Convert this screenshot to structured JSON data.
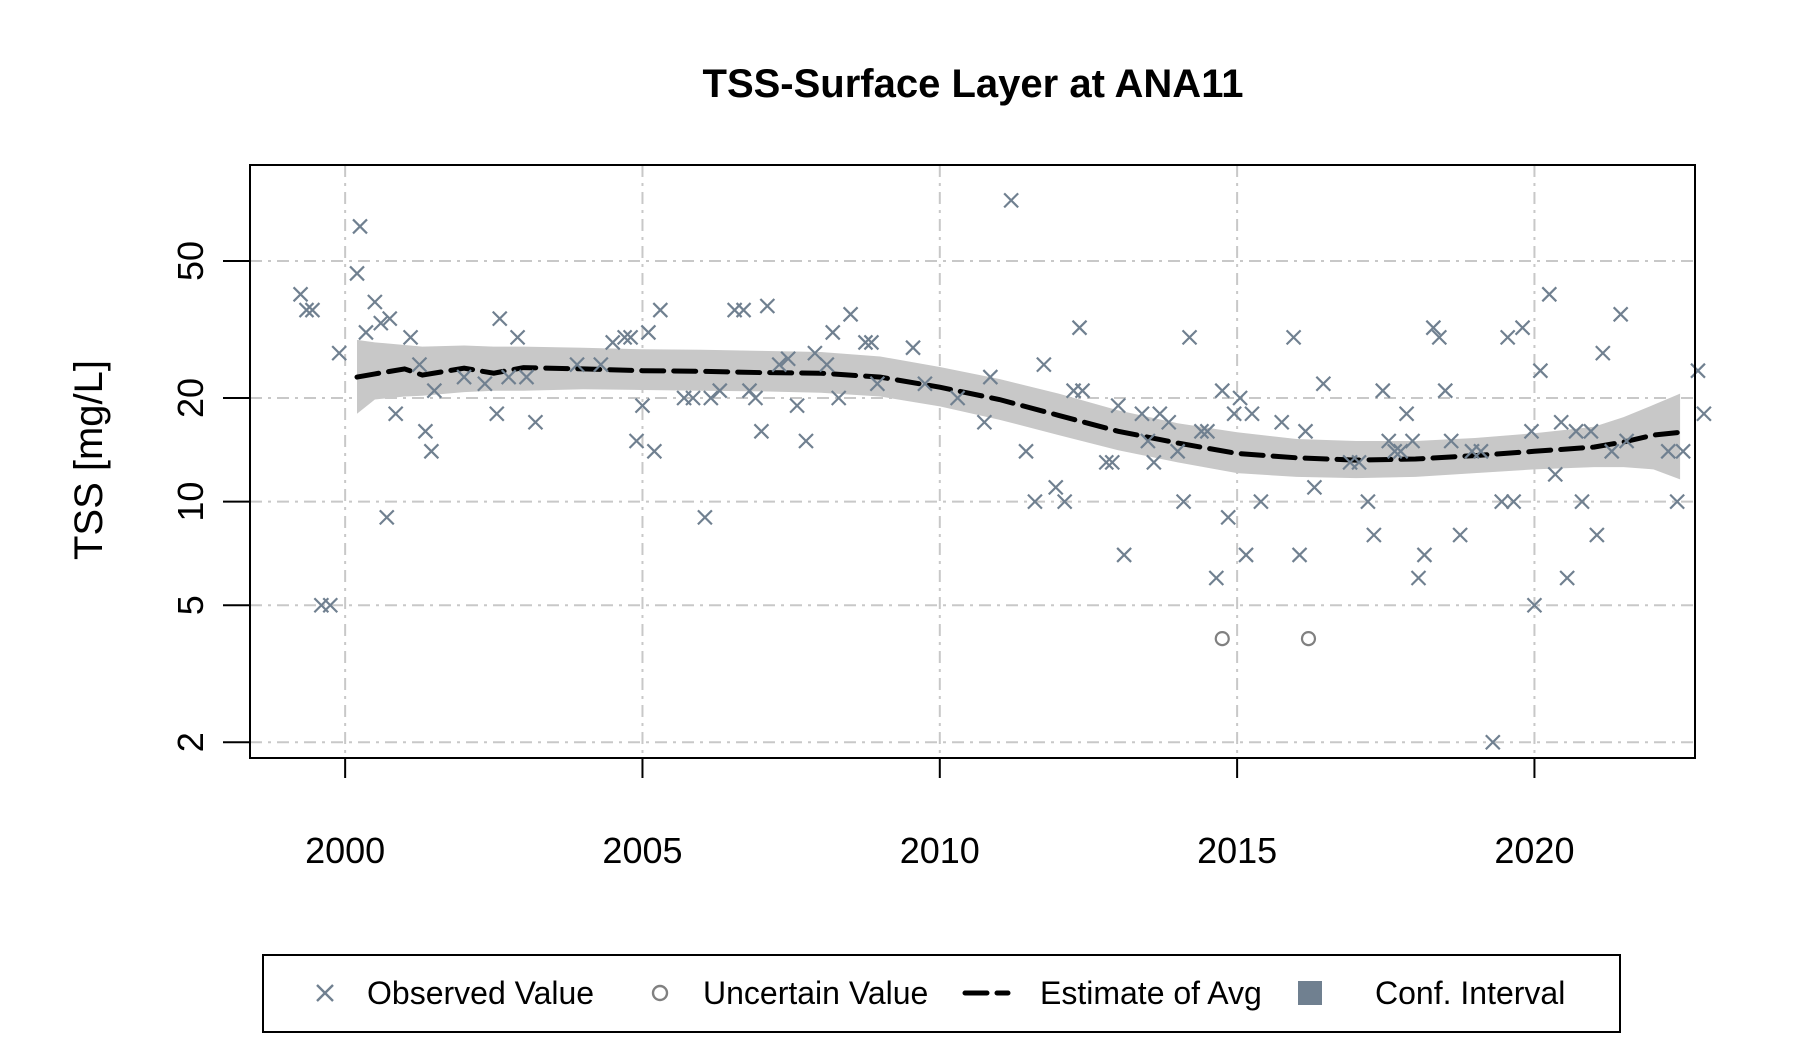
{
  "chart_data": {
    "type": "scatter",
    "title": "TSS-Surface Layer at ANA11",
    "xlabel": "",
    "ylabel": "TSS [mg/L]",
    "yscale": "log",
    "xlim": [
      1998.4,
      2022.7
    ],
    "ylim": [
      1.8,
      95
    ],
    "xticks": [
      2000,
      2005,
      2010,
      2015,
      2020
    ],
    "yticks": [
      2,
      5,
      10,
      20,
      50
    ],
    "grid": true,
    "legend_position": "bottom",
    "colors": {
      "observed": "#708090",
      "uncertain": "#808080",
      "estimate": "#000000",
      "conf_interval_fill": "#c8c8c8",
      "legend_ci_swatch": "#708090"
    },
    "legend": [
      {
        "label": "Observed Value",
        "marker": "x"
      },
      {
        "label": "Uncertain Value",
        "marker": "circle"
      },
      {
        "label": "Estimate of Avg",
        "marker": "dashed-line"
      },
      {
        "label": "Conf. Interval",
        "marker": "square"
      }
    ],
    "series": [
      {
        "name": "Observed Value",
        "marker": "x",
        "points": [
          [
            1999.25,
            40
          ],
          [
            1999.35,
            36
          ],
          [
            1999.45,
            36
          ],
          [
            1999.6,
            5
          ],
          [
            1999.75,
            5
          ],
          [
            1999.9,
            27
          ],
          [
            2000.2,
            46
          ],
          [
            2000.25,
            63
          ],
          [
            2000.35,
            31
          ],
          [
            2000.5,
            38
          ],
          [
            2000.6,
            33
          ],
          [
            2000.7,
            9
          ],
          [
            2000.75,
            34
          ],
          [
            2000.85,
            18
          ],
          [
            2001.1,
            30
          ],
          [
            2001.25,
            25
          ],
          [
            2001.35,
            16
          ],
          [
            2001.45,
            14
          ],
          [
            2001.5,
            21
          ],
          [
            2002.0,
            23
          ],
          [
            2002.35,
            22
          ],
          [
            2002.55,
            18
          ],
          [
            2002.6,
            34
          ],
          [
            2002.75,
            23
          ],
          [
            2002.9,
            30
          ],
          [
            2003.05,
            23
          ],
          [
            2003.2,
            17
          ],
          [
            2003.9,
            25
          ],
          [
            2004.3,
            25
          ],
          [
            2004.5,
            29
          ],
          [
            2004.7,
            30
          ],
          [
            2004.8,
            30
          ],
          [
            2004.9,
            15
          ],
          [
            2005.0,
            19
          ],
          [
            2005.1,
            31
          ],
          [
            2005.2,
            14
          ],
          [
            2005.3,
            36
          ],
          [
            2005.7,
            20
          ],
          [
            2005.85,
            20
          ],
          [
            2006.05,
            9
          ],
          [
            2006.15,
            20
          ],
          [
            2006.3,
            21
          ],
          [
            2006.55,
            36
          ],
          [
            2006.7,
            36
          ],
          [
            2006.8,
            21
          ],
          [
            2006.9,
            20
          ],
          [
            2007.0,
            16
          ],
          [
            2007.1,
            37
          ],
          [
            2007.3,
            25
          ],
          [
            2007.45,
            26
          ],
          [
            2007.6,
            19
          ],
          [
            2007.75,
            15
          ],
          [
            2007.9,
            27
          ],
          [
            2008.1,
            25
          ],
          [
            2008.2,
            31
          ],
          [
            2008.3,
            20
          ],
          [
            2008.5,
            35
          ],
          [
            2008.75,
            29
          ],
          [
            2008.85,
            29
          ],
          [
            2008.95,
            22
          ],
          [
            2009.55,
            28
          ],
          [
            2009.75,
            22
          ],
          [
            2010.3,
            20
          ],
          [
            2010.75,
            17
          ],
          [
            2010.85,
            23
          ],
          [
            2011.2,
            75
          ],
          [
            2011.45,
            14
          ],
          [
            2011.6,
            10
          ],
          [
            2011.75,
            25
          ],
          [
            2011.95,
            11
          ],
          [
            2012.1,
            10
          ],
          [
            2012.25,
            21
          ],
          [
            2012.35,
            32
          ],
          [
            2012.4,
            21
          ],
          [
            2012.8,
            13
          ],
          [
            2012.9,
            13
          ],
          [
            2013.0,
            19
          ],
          [
            2013.1,
            7
          ],
          [
            2013.4,
            18
          ],
          [
            2013.5,
            15
          ],
          [
            2013.6,
            13
          ],
          [
            2013.7,
            18
          ],
          [
            2013.85,
            17
          ],
          [
            2014.0,
            14
          ],
          [
            2014.1,
            10
          ],
          [
            2014.2,
            30
          ],
          [
            2014.4,
            16
          ],
          [
            2014.5,
            16
          ],
          [
            2014.65,
            6
          ],
          [
            2014.75,
            21
          ],
          [
            2014.85,
            9
          ],
          [
            2014.95,
            18
          ],
          [
            2015.05,
            20
          ],
          [
            2015.15,
            7
          ],
          [
            2015.25,
            18
          ],
          [
            2015.4,
            10
          ],
          [
            2015.75,
            17
          ],
          [
            2015.95,
            30
          ],
          [
            2016.05,
            7
          ],
          [
            2016.15,
            16
          ],
          [
            2016.3,
            11
          ],
          [
            2016.45,
            22
          ],
          [
            2016.9,
            13
          ],
          [
            2017.05,
            13
          ],
          [
            2017.2,
            10
          ],
          [
            2017.3,
            8
          ],
          [
            2017.45,
            21
          ],
          [
            2017.55,
            15
          ],
          [
            2017.65,
            14
          ],
          [
            2017.75,
            14
          ],
          [
            2017.85,
            18
          ],
          [
            2017.95,
            15
          ],
          [
            2018.05,
            6
          ],
          [
            2018.15,
            7
          ],
          [
            2018.3,
            32
          ],
          [
            2018.4,
            30
          ],
          [
            2018.5,
            21
          ],
          [
            2018.6,
            15
          ],
          [
            2018.75,
            8
          ],
          [
            2018.95,
            14
          ],
          [
            2019.1,
            14
          ],
          [
            2019.3,
            2
          ],
          [
            2019.45,
            10
          ],
          [
            2019.55,
            30
          ],
          [
            2019.65,
            10
          ],
          [
            2019.8,
            32
          ],
          [
            2019.95,
            16
          ],
          [
            2020.0,
            5
          ],
          [
            2020.1,
            24
          ],
          [
            2020.25,
            40
          ],
          [
            2020.35,
            12
          ],
          [
            2020.45,
            17
          ],
          [
            2020.55,
            6
          ],
          [
            2020.7,
            16
          ],
          [
            2020.8,
            10
          ],
          [
            2020.95,
            16
          ],
          [
            2021.05,
            8
          ],
          [
            2021.15,
            27
          ],
          [
            2021.3,
            14
          ],
          [
            2021.45,
            35
          ],
          [
            2021.55,
            15
          ],
          [
            2022.25,
            14
          ],
          [
            2022.4,
            10
          ],
          [
            2022.5,
            14
          ],
          [
            2022.75,
            24
          ],
          [
            2022.85,
            18
          ]
        ]
      },
      {
        "name": "Uncertain Value",
        "marker": "circle",
        "points": [
          [
            2014.75,
            4
          ],
          [
            2016.2,
            4
          ]
        ]
      },
      {
        "name": "Estimate of Avg",
        "line": "dashed",
        "x": [
          2000.2,
          2000.5,
          2001.0,
          2001.3,
          2002.0,
          2002.5,
          2003.0,
          2004.0,
          2005.0,
          2006.0,
          2007.0,
          2008.0,
          2009.0,
          2010.0,
          2011.0,
          2012.0,
          2013.0,
          2014.0,
          2015.0,
          2016.0,
          2017.0,
          2018.0,
          2019.0,
          2020.0,
          2021.0,
          2021.5,
          2022.0,
          2022.45
        ],
        "y": [
          23,
          23.5,
          24.3,
          23.3,
          24.4,
          23.6,
          24.5,
          24.3,
          24.0,
          23.9,
          23.7,
          23.6,
          23.0,
          21.5,
          19.8,
          17.8,
          16.0,
          14.8,
          13.8,
          13.4,
          13.2,
          13.3,
          13.6,
          14.0,
          14.4,
          14.9,
          15.6,
          15.9
        ]
      },
      {
        "name": "Conf. Interval",
        "area": true,
        "x": [
          2000.2,
          2000.5,
          2001.0,
          2001.3,
          2002.0,
          2002.5,
          2003.0,
          2004.0,
          2005.0,
          2006.0,
          2007.0,
          2008.0,
          2009.0,
          2010.0,
          2011.0,
          2012.0,
          2013.0,
          2014.0,
          2015.0,
          2016.0,
          2017.0,
          2018.0,
          2019.0,
          2020.0,
          2021.0,
          2021.5,
          2022.0,
          2022.45
        ],
        "y_lower": [
          18.0,
          19.8,
          20.2,
          20.3,
          20.8,
          21.0,
          21.0,
          21.2,
          21.1,
          21.0,
          20.9,
          20.7,
          20.2,
          18.9,
          17.3,
          15.6,
          14.1,
          13.0,
          12.1,
          11.8,
          11.7,
          11.8,
          12.1,
          12.4,
          12.6,
          12.6,
          12.4,
          11.6
        ],
        "y_upper": [
          29.5,
          29.0,
          28.5,
          28.2,
          28.4,
          28.2,
          28.2,
          28.0,
          27.7,
          27.6,
          27.4,
          27.2,
          26.4,
          24.6,
          22.7,
          20.6,
          18.4,
          16.9,
          15.9,
          15.2,
          15.0,
          15.0,
          15.3,
          15.8,
          16.5,
          17.6,
          19.1,
          20.6
        ]
      }
    ]
  }
}
